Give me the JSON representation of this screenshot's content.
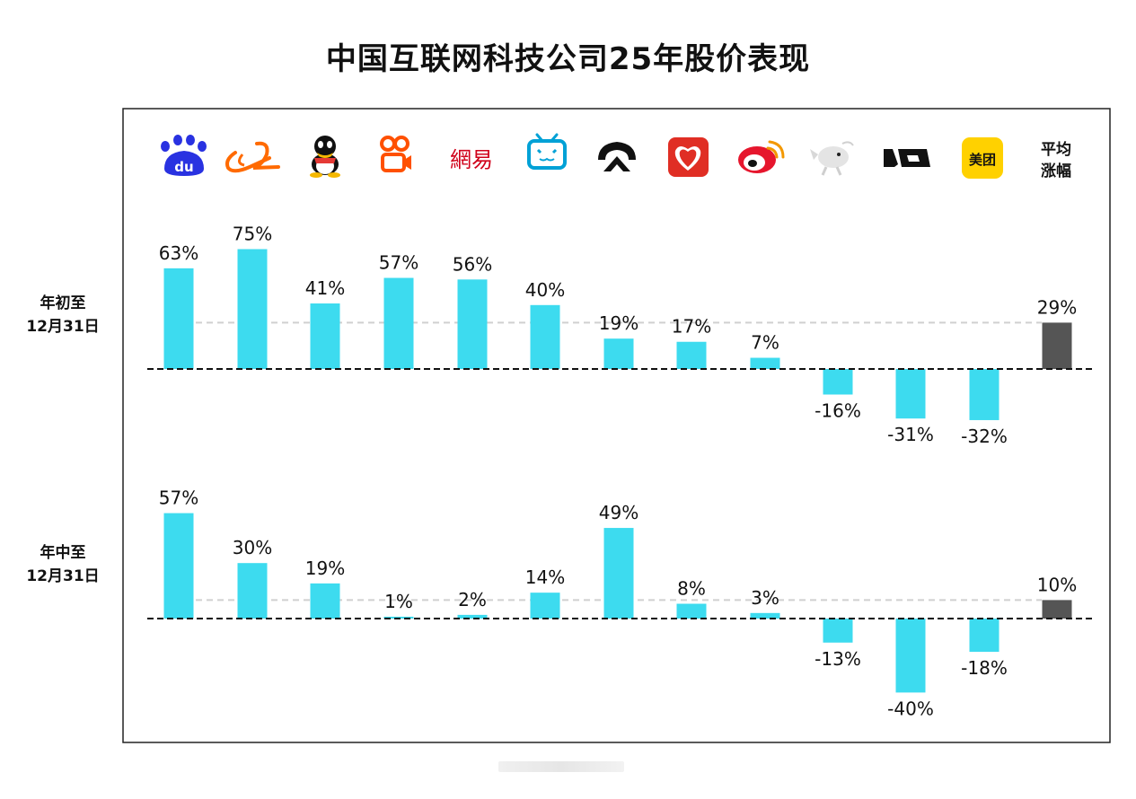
{
  "title": "中国互联网科技公司25年股价表现",
  "chart_data": {
    "type": "bar",
    "title": "中国互联网科技公司25年股价表现",
    "categories": [
      "baidu-logo",
      "alibaba-logo",
      "tencent-qq-logo",
      "kuaishou-logo",
      "网易",
      "bilibili-logo",
      "nio-logo",
      "pinduoduo-logo",
      "weibo-logo",
      "jd-logo",
      "li-auto-logo",
      "美团",
      "平均涨幅"
    ],
    "average_label": [
      "平均",
      "涨幅"
    ],
    "series": [
      {
        "name": "年初至12月31日",
        "label_lines": [
          "年初至",
          "12月31日"
        ],
        "values": [
          63,
          75,
          41,
          57,
          56,
          40,
          19,
          17,
          7,
          -16,
          -31,
          -32,
          29
        ],
        "labels": [
          "63%",
          "75%",
          "41%",
          "57%",
          "56%",
          "40%",
          "19%",
          "17%",
          "7%",
          "-16%",
          "-31%",
          "-32%",
          "29%"
        ]
      },
      {
        "name": "年中至12月31日",
        "label_lines": [
          "年中至",
          "12月31日"
        ],
        "values": [
          57,
          30,
          19,
          1,
          2,
          14,
          49,
          8,
          3,
          -13,
          -40,
          -18,
          10
        ],
        "labels": [
          "57%",
          "30%",
          "19%",
          "1%",
          "2%",
          "14%",
          "49%",
          "8%",
          "3%",
          "-13%",
          "-40%",
          "-18%",
          "10%"
        ]
      }
    ],
    "colors": {
      "company_bar": "#3ddbef",
      "average_bar": "#555555",
      "baseline": "#111111",
      "avg_line": "#d0d0d0"
    },
    "logo_texts": {
      "baidu": "du",
      "netease": "網易",
      "meituan": "美团"
    }
  }
}
